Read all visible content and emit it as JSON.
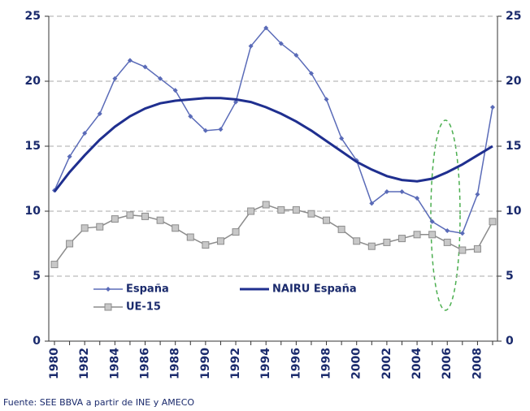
{
  "chart_data": {
    "type": "line",
    "categories": [
      "1980",
      null,
      "1982",
      null,
      "1984",
      null,
      "1986",
      null,
      "1988",
      null,
      "1990",
      null,
      "1992",
      null,
      "1994",
      null,
      "1996",
      null,
      "1998",
      null,
      "2000",
      null,
      "2002",
      null,
      "2004",
      null,
      "2006",
      null,
      "2008",
      null
    ],
    "series": [
      {
        "name": "España",
        "color": "#5a6bb8",
        "marker": "diamond",
        "values": [
          11.6,
          14.2,
          16.0,
          17.5,
          20.2,
          21.6,
          21.1,
          20.2,
          19.3,
          17.3,
          16.2,
          16.3,
          18.4,
          22.7,
          24.1,
          22.9,
          22.0,
          20.6,
          18.6,
          15.6,
          13.9,
          10.6,
          11.5,
          11.5,
          11.0,
          9.2,
          8.5,
          8.3,
          11.3,
          18.0
        ]
      },
      {
        "name": "NAIRU España",
        "color": "#1f2f8f",
        "marker": null,
        "values": [
          11.5,
          13.0,
          14.3,
          15.5,
          16.5,
          17.3,
          17.9,
          18.3,
          18.5,
          18.6,
          18.7,
          18.7,
          18.6,
          18.4,
          18.0,
          17.5,
          16.9,
          16.2,
          15.4,
          14.6,
          13.8,
          13.2,
          12.7,
          12.4,
          12.3,
          12.5,
          13.0,
          13.6,
          14.3,
          15.0
        ]
      },
      {
        "name": "UE-15",
        "color": "#8c8c8c",
        "marker": "square",
        "values": [
          5.9,
          7.5,
          8.7,
          8.8,
          9.4,
          9.7,
          9.6,
          9.3,
          8.7,
          8.0,
          7.4,
          7.7,
          8.4,
          10.0,
          10.5,
          10.1,
          10.1,
          9.8,
          9.3,
          8.6,
          7.7,
          7.3,
          7.6,
          7.9,
          8.2,
          8.2,
          7.6,
          7.0,
          7.1,
          9.2
        ]
      }
    ],
    "ylim": [
      0,
      25
    ],
    "yticks": [
      0,
      5,
      10,
      15,
      20,
      25
    ],
    "y2lim": [
      0,
      25
    ],
    "y2ticks": [
      0,
      5,
      10,
      15,
      20,
      25
    ],
    "grid": true,
    "source": "Fuente: SEE BBVA a partir de INE y AMECO"
  }
}
